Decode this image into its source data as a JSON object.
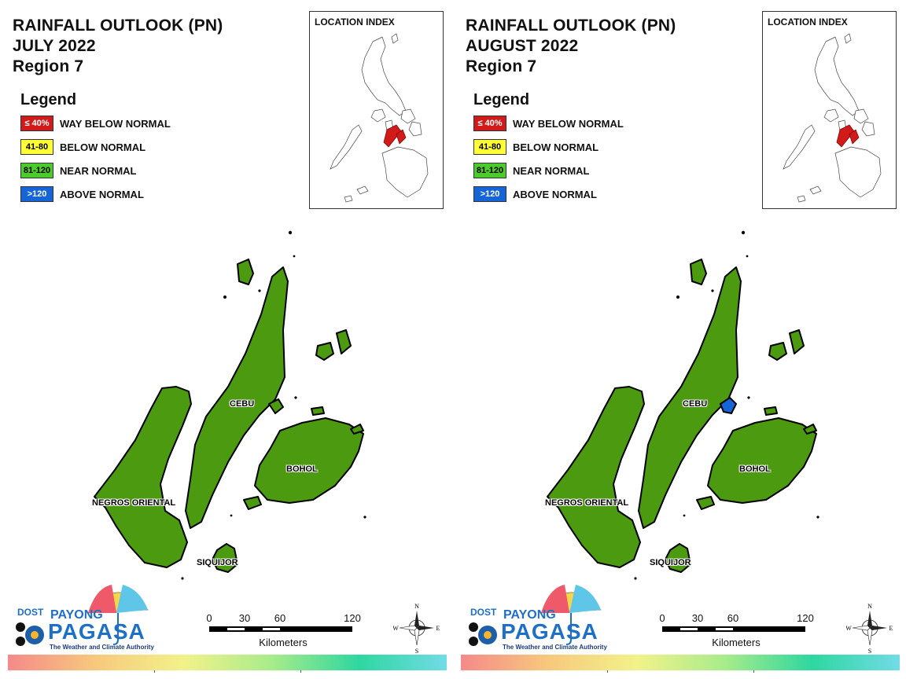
{
  "panels": [
    {
      "title_line1": "RAINFALL OUTLOOK (PN)",
      "title_line2": "JULY 2022",
      "title_line3": "Region 7",
      "legend": {
        "heading": "Legend",
        "items": [
          {
            "swatch": "≤ 40%",
            "label": "WAY BELOW NORMAL",
            "color": "#d11a1a",
            "text_color": "#ffffff"
          },
          {
            "swatch": "41-80",
            "label": "BELOW NORMAL",
            "color": "#ffff33",
            "text_color": "#000000"
          },
          {
            "swatch": "81-120",
            "label": "NEAR NORMAL",
            "color": "#4ccb2c",
            "text_color": "#000000"
          },
          {
            "swatch": ">120",
            "label": "ABOVE NORMAL",
            "color": "#1565d8",
            "text_color": "#ffffff"
          }
        ]
      },
      "location_index": {
        "title": "LOCATION INDEX",
        "highlight_color": "#d11a1a"
      },
      "provinces": [
        {
          "name": "CEBU",
          "category": "NEAR NORMAL"
        },
        {
          "name": "BOHOL",
          "category": "NEAR NORMAL"
        },
        {
          "name": "NEGROS ORIENTAL",
          "category": "NEAR NORMAL"
        },
        {
          "name": "SIQUIJOR",
          "category": "NEAR NORMAL"
        }
      ],
      "land_color": "#4c9a10",
      "above_normal_spot": false
    },
    {
      "title_line1": "RAINFALL OUTLOOK (PN)",
      "title_line2": "AUGUST 2022",
      "title_line3": "Region 7",
      "legend": {
        "heading": "Legend",
        "items": [
          {
            "swatch": "≤ 40%",
            "label": "WAY BELOW NORMAL",
            "color": "#d11a1a",
            "text_color": "#ffffff"
          },
          {
            "swatch": "41-80",
            "label": "BELOW NORMAL",
            "color": "#ffff33",
            "text_color": "#000000"
          },
          {
            "swatch": "81-120",
            "label": "NEAR NORMAL",
            "color": "#4ccb2c",
            "text_color": "#000000"
          },
          {
            "swatch": ">120",
            "label": "ABOVE NORMAL",
            "color": "#1565d8",
            "text_color": "#ffffff"
          }
        ]
      },
      "location_index": {
        "title": "LOCATION INDEX",
        "highlight_color": "#d11a1a"
      },
      "provinces": [
        {
          "name": "CEBU",
          "category": "NEAR NORMAL"
        },
        {
          "name": "BOHOL",
          "category": "NEAR NORMAL"
        },
        {
          "name": "NEGROS ORIENTAL",
          "category": "NEAR NORMAL"
        },
        {
          "name": "SIQUIJOR",
          "category": "NEAR NORMAL"
        }
      ],
      "land_color": "#4c9a10",
      "above_normal_spot": true
    }
  ],
  "logo": {
    "dost": "DOST",
    "payong": "PAYONG",
    "pagasa": "PAGASA",
    "tagline": "The Weather and Climate Authority"
  },
  "scale_bar": {
    "ticks": [
      "0",
      "30",
      "60",
      "120"
    ],
    "unit": "Kilometers"
  },
  "compass": {
    "n": "N",
    "s": "S",
    "e": "E",
    "w": "W"
  }
}
